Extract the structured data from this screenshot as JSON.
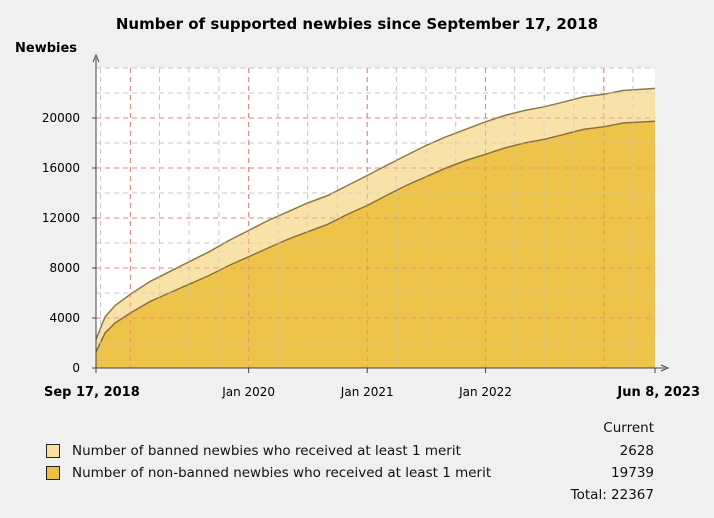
{
  "chart_data": {
    "type": "area",
    "stacked": true,
    "title": "Number of supported newbies since September 17, 2018",
    "ylabel": "Newbies",
    "xlabel": "",
    "ylim": [
      0,
      24000
    ],
    "yticks": [
      0,
      4000,
      8000,
      12000,
      16000,
      20000
    ],
    "ytick_labels": [
      "0",
      "4000",
      "8000",
      "12000",
      "16000",
      "20000"
    ],
    "xlim": [
      "2018-09-17",
      "2023-06-08"
    ],
    "xticks": [
      {
        "date": "2018-09-17",
        "label": "Sep 17, 2018",
        "bold": true
      },
      {
        "date": "2020-01-01",
        "label": "Jan 2020",
        "bold": false
      },
      {
        "date": "2021-01-01",
        "label": "Jan 2021",
        "bold": false
      },
      {
        "date": "2022-01-01",
        "label": "Jan 2022",
        "bold": false
      },
      {
        "date": "2023-06-08",
        "label": "Jun 8, 2023",
        "bold": true
      }
    ],
    "grid": true,
    "x": [
      "2018-09-17",
      "2018-10-15",
      "2018-11-15",
      "2019-01-01",
      "2019-03-01",
      "2019-05-01",
      "2019-07-01",
      "2019-09-01",
      "2019-11-01",
      "2020-01-01",
      "2020-03-01",
      "2020-05-01",
      "2020-07-01",
      "2020-09-01",
      "2020-11-01",
      "2021-01-01",
      "2021-03-01",
      "2021-05-01",
      "2021-07-01",
      "2021-09-01",
      "2021-11-01",
      "2022-01-01",
      "2022-03-01",
      "2022-05-01",
      "2022-07-01",
      "2022-09-01",
      "2022-11-01",
      "2023-01-01",
      "2023-03-01",
      "2023-06-08"
    ],
    "series": [
      {
        "name": "Number of non-banned newbies who received at least 1 merit",
        "color": "#ecc040",
        "values": [
          1300,
          2800,
          3600,
          4400,
          5300,
          6000,
          6700,
          7400,
          8200,
          8900,
          9600,
          10300,
          10900,
          11500,
          12300,
          13000,
          13800,
          14600,
          15300,
          16000,
          16600,
          17100,
          17600,
          18000,
          18300,
          18700,
          19100,
          19300,
          19600,
          19739
        ]
      },
      {
        "name": "Number of banned newbies who received at least 1 merit",
        "color": "#f7e0a0",
        "values": [
          1000,
          1300,
          1400,
          1500,
          1600,
          1700,
          1800,
          1900,
          2000,
          2100,
          2200,
          2200,
          2300,
          2300,
          2300,
          2400,
          2400,
          2400,
          2500,
          2500,
          2500,
          2600,
          2600,
          2600,
          2600,
          2600,
          2600,
          2600,
          2600,
          2628
        ]
      }
    ]
  },
  "legend": {
    "header": "Current",
    "items": [
      {
        "label": "Number of banned newbies who received at least 1 merit",
        "value": "2628",
        "color": "#f7e0a0"
      },
      {
        "label": "Number of non-banned newbies who received at least 1 merit",
        "value": "19739",
        "color": "#ecc040"
      }
    ],
    "total": "Total: 22367"
  }
}
